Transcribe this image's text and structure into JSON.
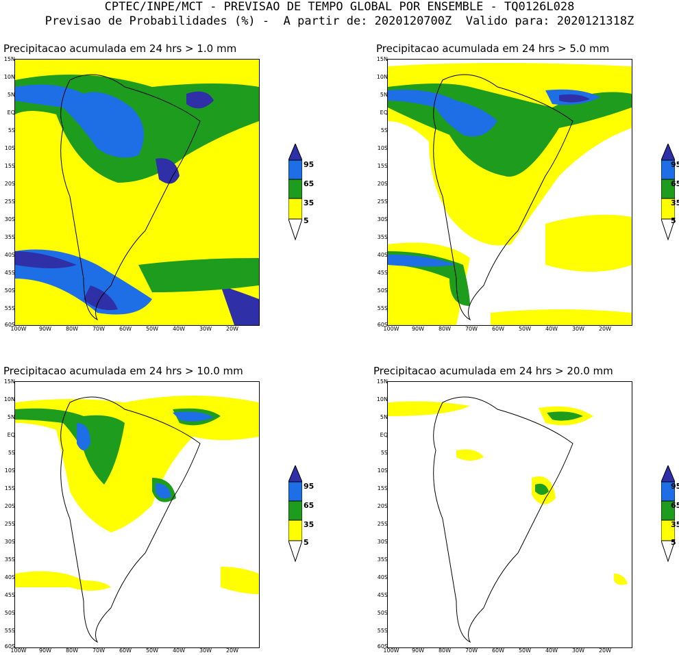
{
  "header": {
    "line1": "CPTEC/INPE/MCT - PREVISAO DE TEMPO GLOBAL POR ENSEMBLE - TQ0126L028",
    "line2": "Previsao de Probabilidades (%) -  A partir de: 2020120700Z  Valido para: 2020121318Z"
  },
  "panels": [
    {
      "title": "Precipitacao acumulada em 24 hrs > 1.0 mm"
    },
    {
      "title": "Precipitacao acumulada em 24 hrs > 5.0 mm"
    },
    {
      "title": "Precipitacao acumulada em 24 hrs > 10.0 mm"
    },
    {
      "title": "Precipitacao acumulada em 24 hrs > 20.0 mm"
    }
  ],
  "lat_labels": [
    "15N",
    "10N",
    "5N",
    "EQ",
    "5S",
    "10S",
    "15S",
    "20S",
    "25S",
    "30S",
    "35S",
    "40S",
    "45S",
    "50S",
    "55S",
    "60S"
  ],
  "lon_labels": [
    "100W",
    "90W",
    "80W",
    "70W",
    "60W",
    "50W",
    "40W",
    "30W",
    "20W"
  ],
  "legend": {
    "labels": [
      "95",
      "65",
      "35",
      "5"
    ],
    "colors": {
      "yellow": "#ffff00",
      "green": "#1e9c1e",
      "blue": "#1e6ee6",
      "dark_blue": "#2f2fa8"
    }
  }
}
